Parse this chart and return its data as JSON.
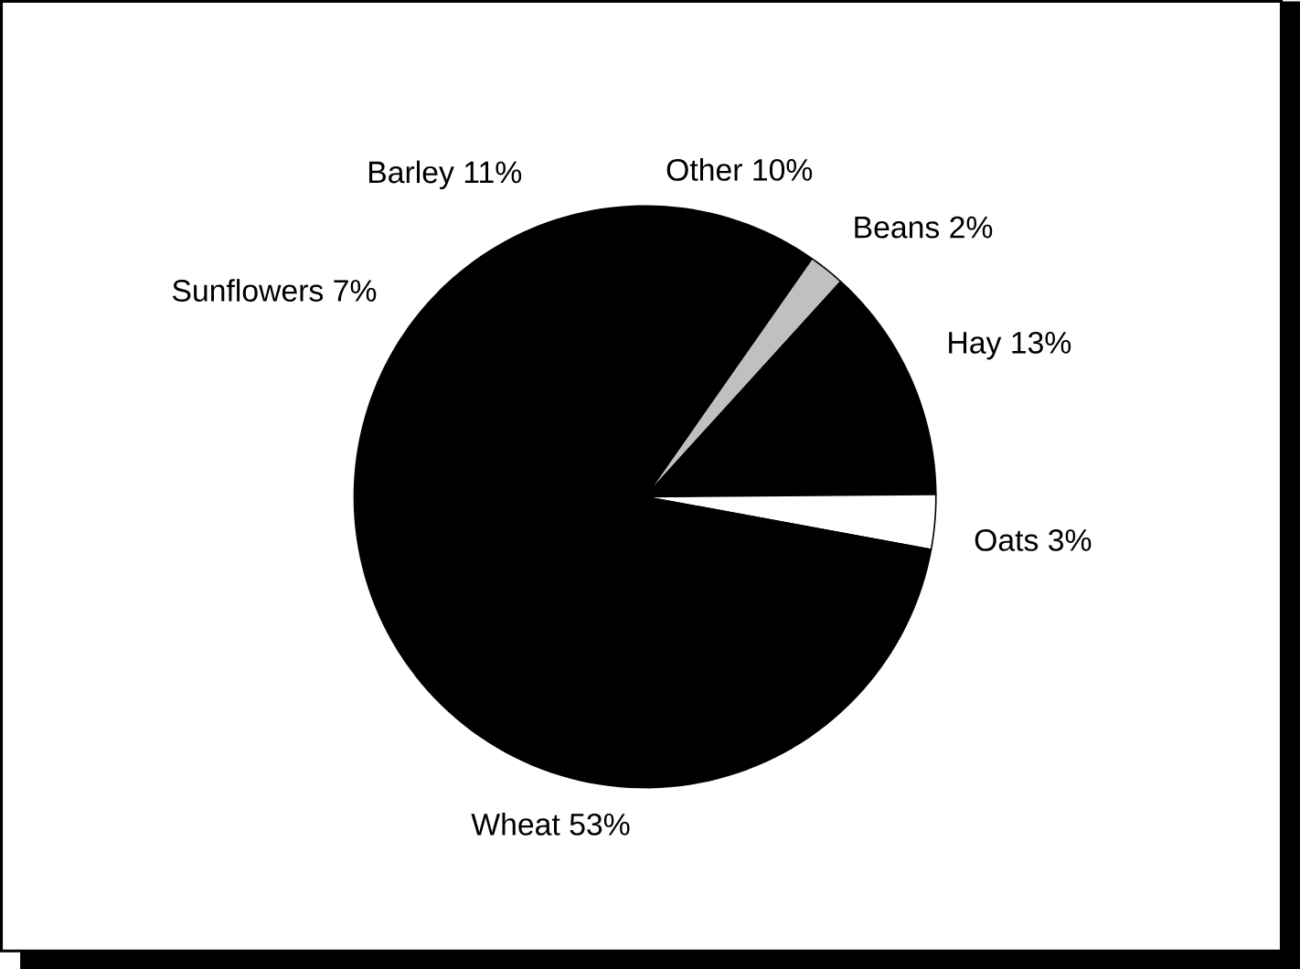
{
  "chart_data": {
    "type": "pie",
    "categories": [
      "Beans",
      "Hay",
      "Oats",
      "Wheat",
      "Sunflowers",
      "Barley",
      "Other"
    ],
    "values": [
      2,
      13,
      3,
      53,
      7,
      11,
      10
    ],
    "value_labels": [
      "2%",
      "13%",
      "3%",
      "53%",
      "7%",
      "11%",
      "10%"
    ],
    "colors": [
      "#c0c0c0",
      "#000000",
      "#ffffff",
      "#000000",
      "#000000",
      "#000000",
      "#000000"
    ]
  }
}
